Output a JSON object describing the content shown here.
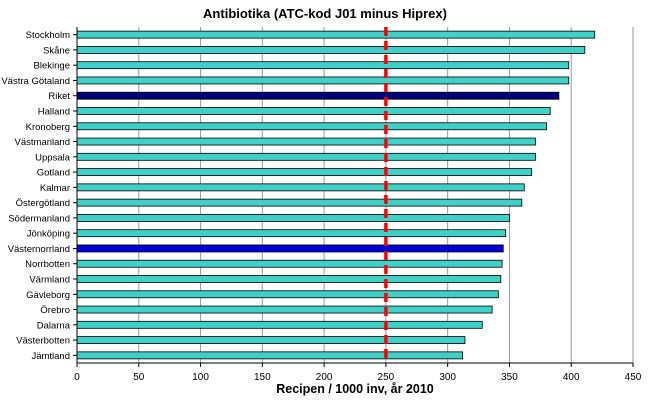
{
  "chart_data": {
    "type": "bar",
    "orientation": "horizontal",
    "title": "Antibiotika (ATC-kod J01 minus Hiprex)",
    "xlabel": "Recipen / 1000 inv, år 2010",
    "ylabel": "",
    "xlim": [
      0,
      450
    ],
    "xticks": [
      "0",
      "50",
      "100",
      "150",
      "200",
      "250",
      "300",
      "350",
      "400",
      "450"
    ],
    "grid": "vertical",
    "reference_line": {
      "x": 250,
      "style": "dashed",
      "color": "#ff0000"
    },
    "categories": [
      "Stockholm",
      "Skåne",
      "Blekinge",
      "Västra Götaland",
      "Riket",
      "Halland",
      "Kronoberg",
      "Västmanland",
      "Uppsala",
      "Gotland",
      "Kalmar",
      "Östergötland",
      "Södermanland",
      "Jönköping",
      "Västernorrland",
      "Norrbotten",
      "Värmland",
      "Gävleborg",
      "Örebro",
      "Dalarna",
      "Västerbotten",
      "Jämtland"
    ],
    "values": [
      419,
      411,
      398,
      398,
      390,
      383,
      380,
      371,
      371,
      368,
      362,
      360,
      350,
      347,
      345,
      344,
      343,
      341,
      336,
      328,
      314,
      312
    ],
    "colors": {
      "default": "#3fd0c8",
      "highlight_dark": "#00007a",
      "highlight_blue": "#0000dd"
    },
    "highlights": {
      "Riket": "highlight_dark",
      "Västernorrland": "highlight_blue"
    }
  }
}
